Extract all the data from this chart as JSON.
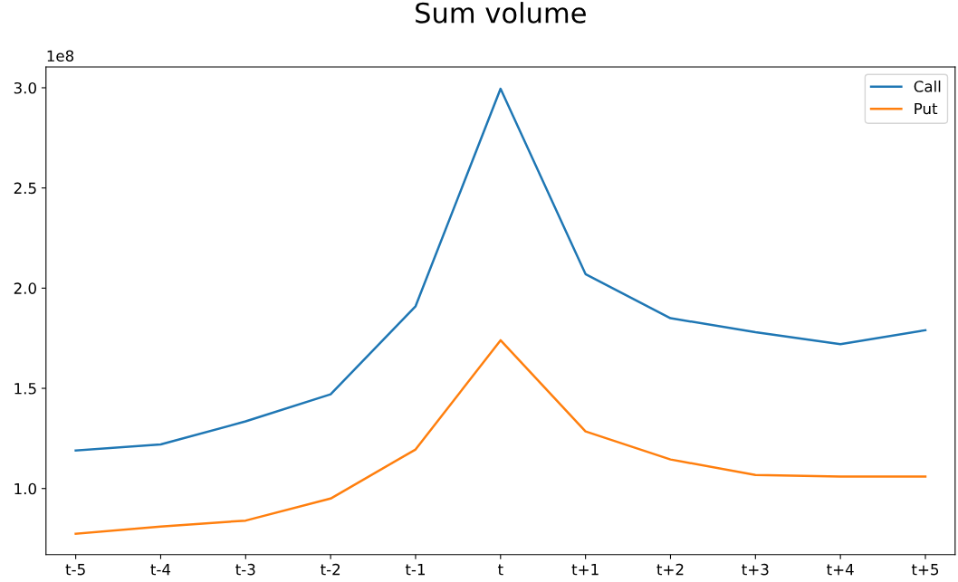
{
  "chart_data": {
    "type": "line",
    "title": "Sum volume",
    "categories": [
      "t-5",
      "t-4",
      "t-3",
      "t-2",
      "t-1",
      "t",
      "t+1",
      "t+2",
      "t+3",
      "t+4",
      "t+5"
    ],
    "series": [
      {
        "name": "Call",
        "color": "#1f77b4",
        "values": [
          1.19,
          1.22,
          1.335,
          1.47,
          1.91,
          2.995,
          2.07,
          1.85,
          1.78,
          1.72,
          1.79
        ]
      },
      {
        "name": "Put",
        "color": "#ff7f0e",
        "values": [
          0.774,
          0.81,
          0.84,
          0.95,
          1.195,
          1.74,
          1.285,
          1.145,
          1.068,
          1.06,
          1.06
        ]
      }
    ],
    "ylim": [
      0.67,
      3.104
    ],
    "yticks": [
      {
        "value": 1,
        "label": "1.0"
      },
      {
        "value": 1.5,
        "label": "1.5"
      },
      {
        "value": 2,
        "label": "2.0"
      },
      {
        "value": 2.5,
        "label": "2.5"
      },
      {
        "value": 3,
        "label": "3.0"
      }
    ],
    "annotations": [
      "1e8"
    ],
    "legend": "top right",
    "grid": false
  }
}
